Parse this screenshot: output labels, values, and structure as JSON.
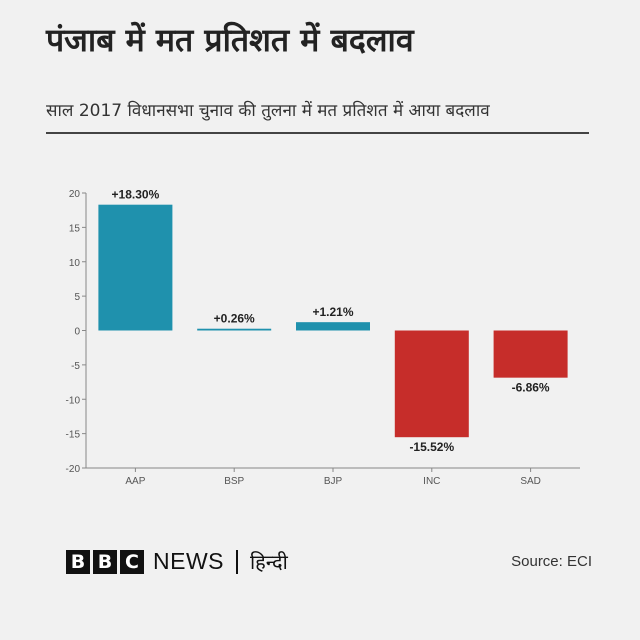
{
  "title": "पंजाब में मत प्रतिशत में बदलाव",
  "subtitle": "साल 2017 विधानसभा चुनाव की तुलना में मत प्रतिशत में आया बदलाव",
  "footer": {
    "logo_letters": [
      "B",
      "B",
      "C"
    ],
    "news": "NEWS",
    "language": "हिन्दी",
    "source": "Source: ECI"
  },
  "colors": {
    "positive": "#1f91ad",
    "negative": "#c62d2a"
  },
  "chart_data": {
    "type": "bar",
    "categories": [
      "AAP",
      "BSP",
      "BJP",
      "INC",
      "SAD"
    ],
    "values": [
      18.3,
      0.26,
      1.21,
      -15.52,
      -6.86
    ],
    "data_labels": [
      "+18.30%",
      "+0.26%",
      "+1.21%",
      "-15.52%",
      "-6.86%"
    ],
    "ylim": [
      -20,
      20
    ],
    "yticks": [
      20,
      15,
      10,
      5,
      0,
      -5,
      -10,
      -15,
      -20
    ],
    "grid": false,
    "title": "",
    "xlabel": "",
    "ylabel": ""
  }
}
